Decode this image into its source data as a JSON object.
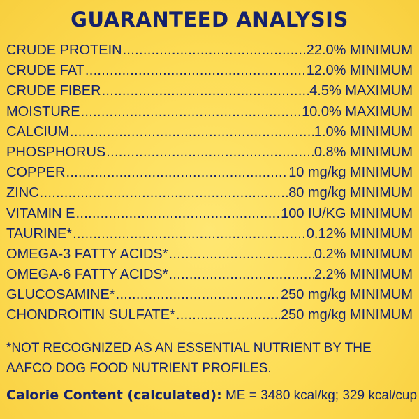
{
  "title": "GUARANTEED ANALYSIS",
  "rows": [
    {
      "name": "CRUDE PROTEIN",
      "value": "22.0% MINIMUM"
    },
    {
      "name": "CRUDE FAT",
      "value": "12.0% MINIMUM"
    },
    {
      "name": "CRUDE FIBER",
      "value": "4.5% MAXIMUM"
    },
    {
      "name": "MOISTURE",
      "value": "10.0% MAXIMUM"
    },
    {
      "name": "CALCIUM",
      "value": "1.0% MINIMUM"
    },
    {
      "name": "PHOSPHORUS",
      "value": "0.8% MINIMUM"
    },
    {
      "name": "COPPER",
      "value": "10 mg/kg MINIMUM"
    },
    {
      "name": "ZINC",
      "value": "80 mg/kg MINIMUM"
    },
    {
      "name": "VITAMIN E",
      "value": "100 IU/KG MINIMUM"
    },
    {
      "name": "TAURINE*",
      "value": "0.12% MINIMUM"
    },
    {
      "name": "OMEGA-3 FATTY ACIDS*",
      "value": "0.2% MINIMUM"
    },
    {
      "name": "OMEGA-6 FATTY ACIDS*",
      "value": "2.2% MINIMUM"
    },
    {
      "name": "GLUCOSAMINE*",
      "value": "250 mg/kg MINIMUM"
    },
    {
      "name": "CHONDROITIN SULFATE*",
      "value": "250 mg/kg MINIMUM"
    }
  ],
  "footnote": "*NOT RECOGNIZED AS AN ESSENTIAL NUTRIENT BY THE AAFCO DOG FOOD NUTRIENT PROFILES.",
  "calorie": {
    "label": "Calorie Content (calculated):",
    "value": " ME = 3480 kcal/kg; 329 kcal/cup"
  },
  "colors": {
    "background": "#fddc54",
    "text": "#15226c"
  }
}
